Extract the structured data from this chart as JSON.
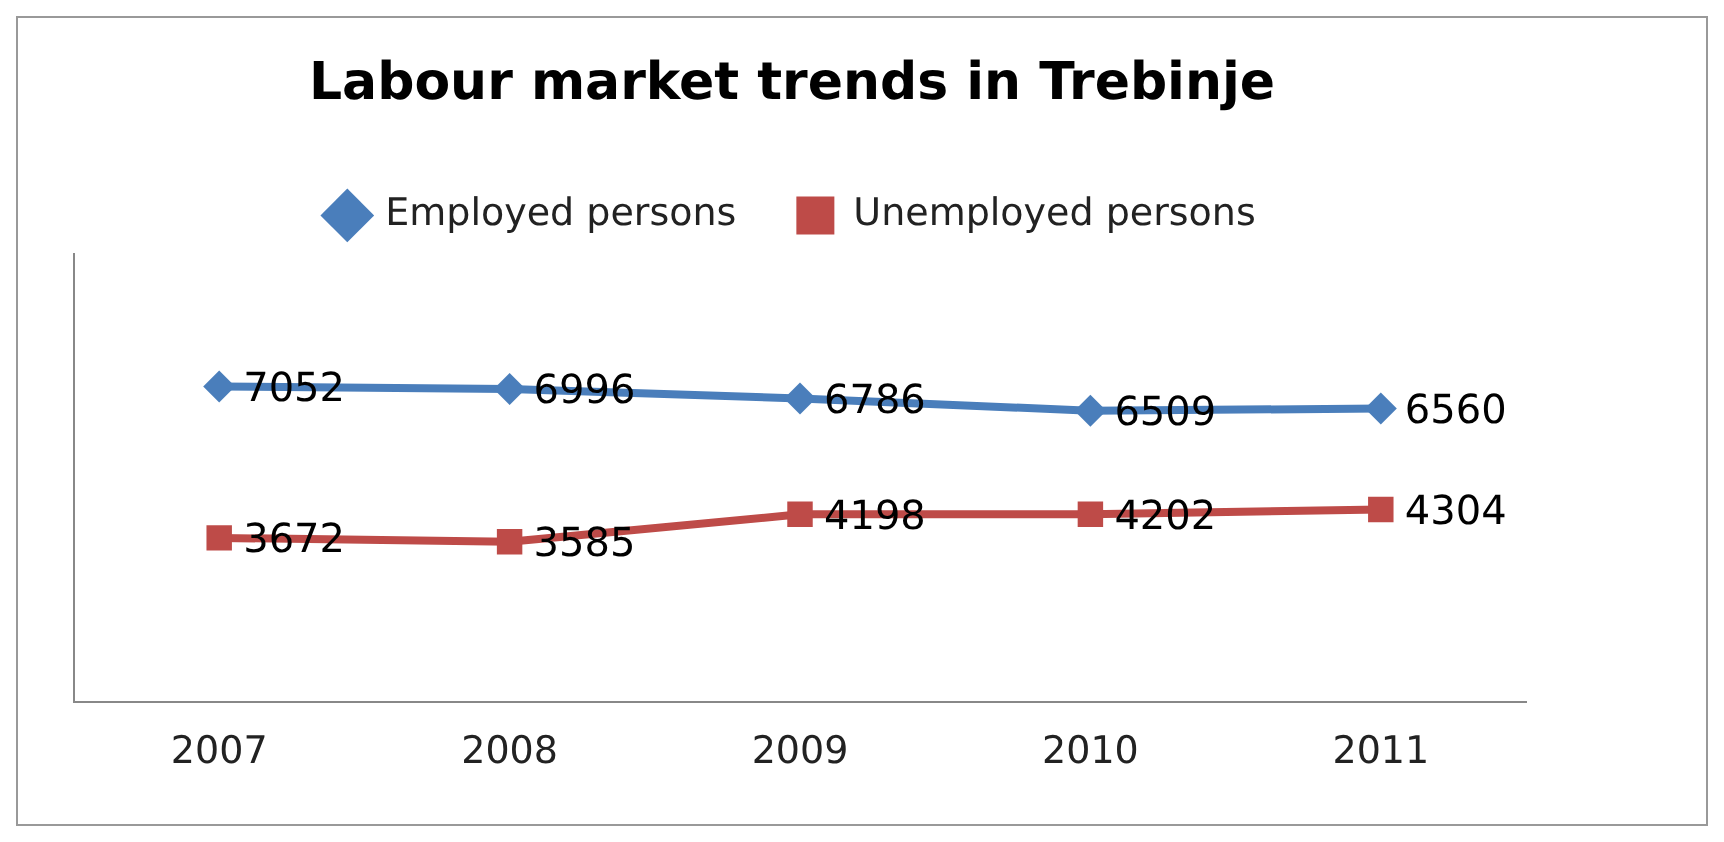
{
  "chart_data": {
    "type": "line",
    "title": "Labour market trends in Trebinje",
    "categories": [
      "2007",
      "2008",
      "2009",
      "2010",
      "2011"
    ],
    "series": [
      {
        "name": "Employed persons",
        "color": "#4a7ebb",
        "marker": "diamond",
        "values": [
          7052,
          6996,
          6786,
          6509,
          6560
        ]
      },
      {
        "name": "Unemployed persons",
        "color": "#be4b48",
        "marker": "square",
        "values": [
          3672,
          3585,
          4198,
          4202,
          4304
        ]
      }
    ],
    "ylim": [
      0,
      10000
    ],
    "tick_labels": "x",
    "grid": false,
    "legend": "top",
    "data_labels": true,
    "line_style": "solid"
  }
}
